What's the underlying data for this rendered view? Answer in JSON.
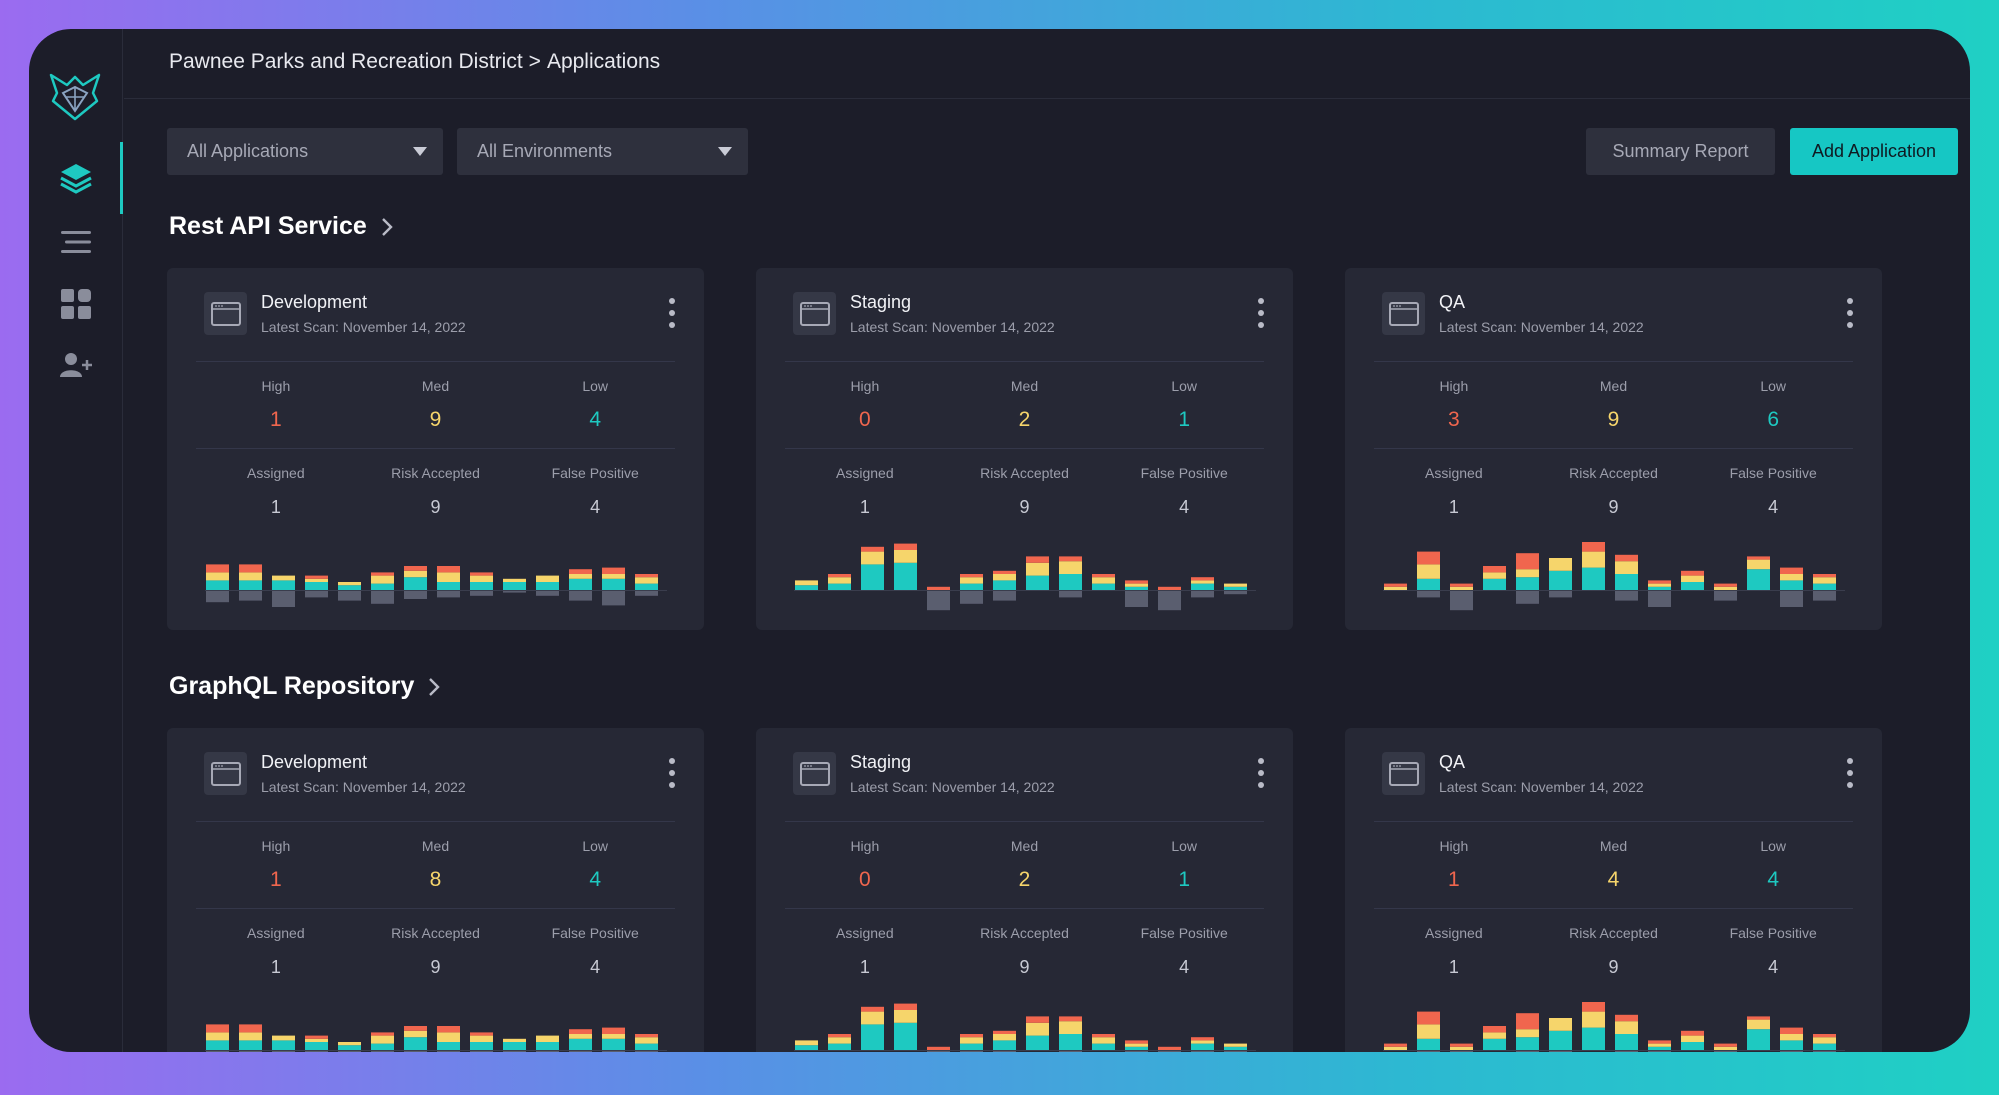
{
  "breadcrumb": {
    "org": "Pawnee Parks and Recreation District",
    "separator": ">",
    "page": "Applications"
  },
  "filters": {
    "applications": "All Applications",
    "environments": "All Environments"
  },
  "actions": {
    "summary_report": "Summary Report",
    "add_application": "Add Application"
  },
  "colors": {
    "accent": "#16c7c4",
    "high": "#f0664e",
    "med": "#f6d56b",
    "low": "#1ec9c1",
    "neutral": "#5a5e6f"
  },
  "labels": {
    "high": "High",
    "med": "Med",
    "low": "Low",
    "assigned": "Assigned",
    "risk_accepted": "Risk Accepted",
    "false_positive": "False Positive"
  },
  "sections": [
    {
      "title": "Rest API Service",
      "cards": [
        {
          "env": "Development",
          "scan": "Latest Scan: November 14, 2022",
          "high": "1",
          "med": "9",
          "low": "4",
          "assigned": "1",
          "risk": "9",
          "false_positive": "4"
        },
        {
          "env": "Staging",
          "scan": "Latest Scan: November 14, 2022",
          "high": "0",
          "med": "2",
          "low": "1",
          "assigned": "1",
          "risk": "9",
          "false_positive": "4"
        },
        {
          "env": "QA",
          "scan": "Latest Scan: November 14, 2022",
          "high": "3",
          "med": "9",
          "low": "6",
          "assigned": "1",
          "risk": "9",
          "false_positive": "4"
        }
      ]
    },
    {
      "title": "GraphQL Repository",
      "cards": [
        {
          "env": "Development",
          "scan": "Latest Scan: November 14, 2022",
          "high": "1",
          "med": "8",
          "low": "4",
          "assigned": "1",
          "risk": "9",
          "false_positive": "4"
        },
        {
          "env": "Staging",
          "scan": "Latest Scan: November 14, 2022",
          "high": "0",
          "med": "2",
          "low": "1",
          "assigned": "1",
          "risk": "9",
          "false_positive": "4"
        },
        {
          "env": "QA",
          "scan": "Latest Scan: November 14, 2022",
          "high": "1",
          "med": "4",
          "low": "4",
          "assigned": "1",
          "risk": "9",
          "false_positive": "4"
        }
      ]
    }
  ],
  "sparklines": {
    "development": [
      [
        6,
        5,
        5,
        7
      ],
      [
        6,
        5,
        5,
        6
      ],
      [
        6,
        3,
        0,
        10
      ],
      [
        5,
        2,
        2,
        4
      ],
      [
        3,
        2,
        0,
        6
      ],
      [
        4,
        5,
        2,
        8
      ],
      [
        8,
        4,
        3,
        5
      ],
      [
        5,
        6,
        4,
        4
      ],
      [
        5,
        4,
        2,
        3
      ],
      [
        5,
        2,
        0,
        1
      ],
      [
        5,
        4,
        0,
        3
      ],
      [
        7,
        3,
        3,
        6
      ],
      [
        7,
        3,
        4,
        9
      ],
      [
        4,
        4,
        2,
        3
      ]
    ],
    "staging": [
      [
        3,
        3,
        0,
        0
      ],
      [
        4,
        4,
        2,
        0
      ],
      [
        16,
        8,
        3,
        0
      ],
      [
        17,
        8,
        4,
        0
      ],
      [
        0,
        0,
        2,
        12
      ],
      [
        4,
        4,
        2,
        8
      ],
      [
        6,
        4,
        2,
        6
      ],
      [
        9,
        8,
        4,
        0
      ],
      [
        10,
        8,
        3,
        4
      ],
      [
        4,
        4,
        2,
        0
      ],
      [
        2,
        2,
        2,
        10
      ],
      [
        0,
        0,
        2,
        12
      ],
      [
        4,
        2,
        2,
        4
      ],
      [
        2,
        2,
        0,
        2
      ]
    ],
    "qa": [
      [
        0,
        2,
        2,
        0
      ],
      [
        7,
        9,
        8,
        4
      ],
      [
        0,
        2,
        2,
        12
      ],
      [
        7,
        4,
        4,
        0
      ],
      [
        8,
        5,
        10,
        8
      ],
      [
        12,
        8,
        0,
        4
      ],
      [
        14,
        10,
        6,
        0
      ],
      [
        10,
        8,
        4,
        6
      ],
      [
        2,
        2,
        2,
        10
      ],
      [
        5,
        4,
        3,
        0
      ],
      [
        0,
        2,
        2,
        6
      ],
      [
        13,
        6,
        2,
        0
      ],
      [
        6,
        4,
        4,
        10
      ],
      [
        4,
        4,
        2,
        6
      ]
    ]
  }
}
